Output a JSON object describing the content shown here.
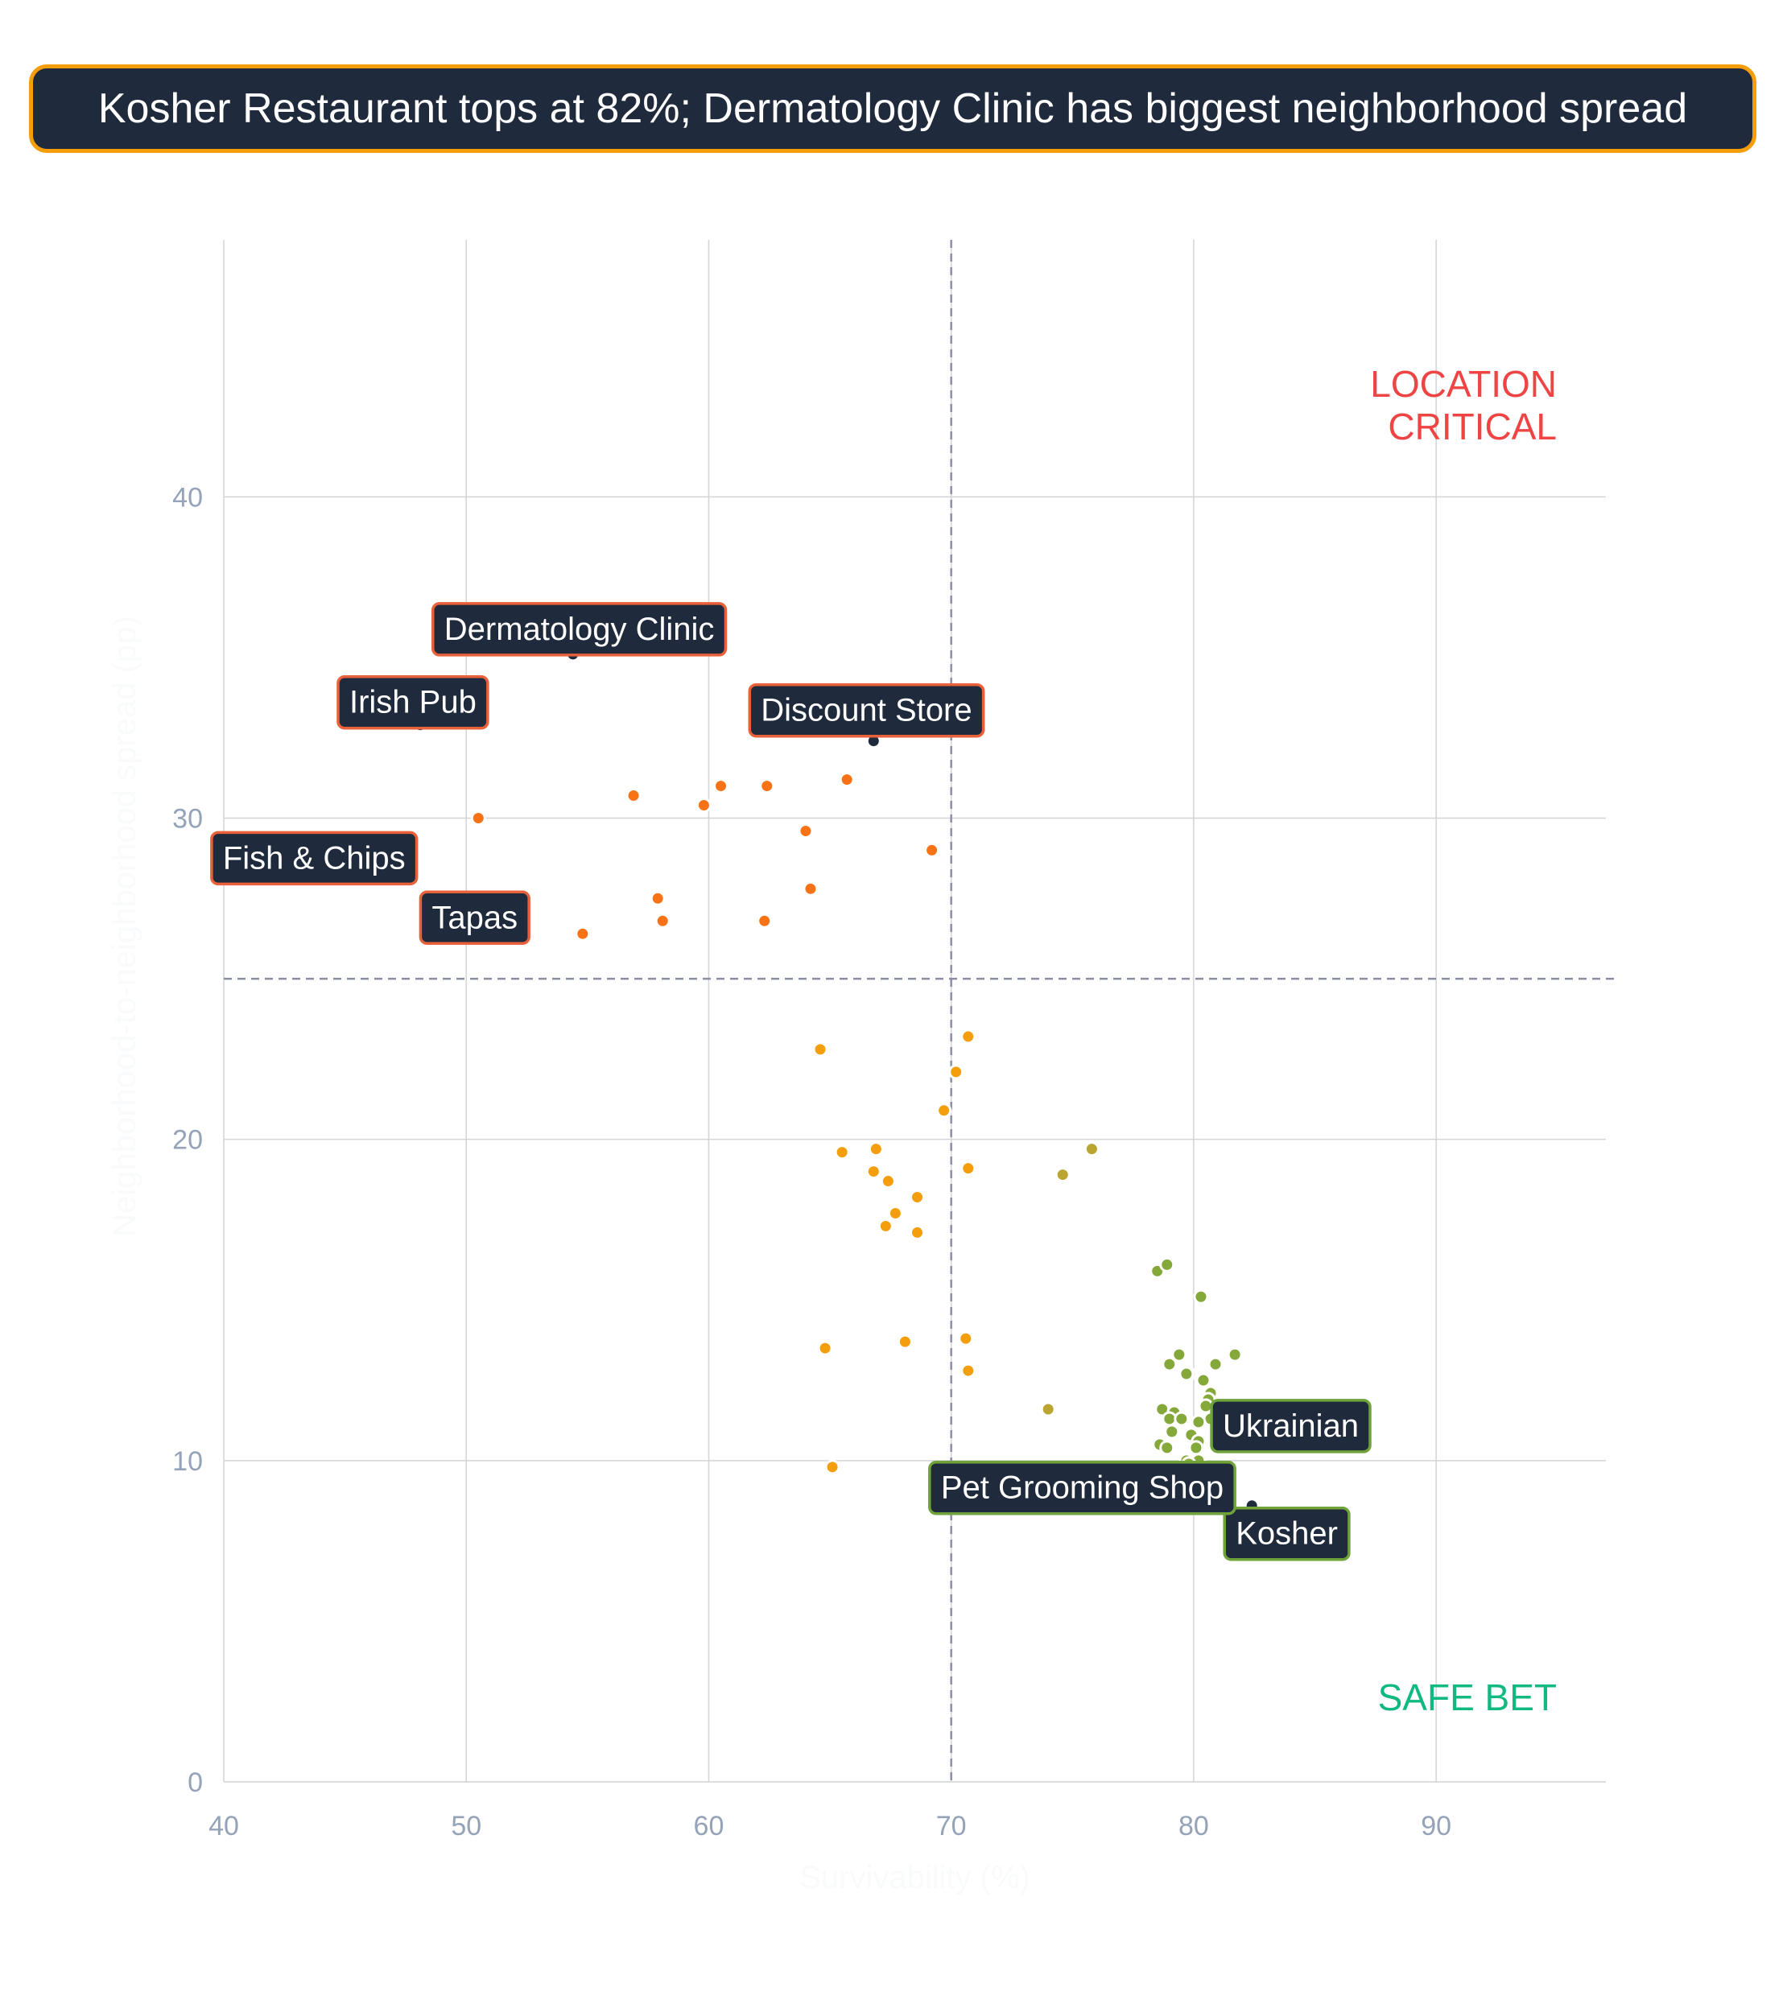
{
  "headline": "Kosher Restaurant tops at 82%; Dermatology Clinic has biggest neighborhood spread",
  "colors": {
    "headline_bg": "#1f2a3c",
    "headline_border": "#f59e0b",
    "label_bg": "#1f2a3c",
    "location_critical": "#ef4444",
    "safe_bet": "#10b981",
    "high_spread_points": "#f97316",
    "mid_points": "#f59e0b",
    "low_spread_points": "#84a83a",
    "grid": "#d4d4d8",
    "reference_line": "#8b8fa3"
  },
  "chart_data": {
    "type": "scatter",
    "xlabel": "Survivability (%)",
    "ylabel": "Neighborhood-to-neighborhood spread (pp)",
    "xlim": [
      40,
      97
    ],
    "ylim": [
      0,
      48
    ],
    "x_ticks": [
      "40",
      "50",
      "60",
      "70",
      "80",
      "90"
    ],
    "y_ticks": [
      "0",
      "10",
      "20",
      "30",
      "40"
    ],
    "grid": true,
    "reference_lines": {
      "x": 70,
      "y": 25
    },
    "quadrant_labels": {
      "top_right": [
        "LOCATION",
        "CRITICAL"
      ],
      "bottom_right": "SAFE BET"
    },
    "points": [
      {
        "x": 54.4,
        "y": 35.1,
        "label": "Dermatology Clinic"
      },
      {
        "x": 48.1,
        "y": 32.9,
        "label": "Irish Pub"
      },
      {
        "x": 66.8,
        "y": 32.4,
        "label": "Discount Store"
      },
      {
        "x": 47.0,
        "y": 28.5,
        "label": "Fish & Chips"
      },
      {
        "x": 51.5,
        "y": 27.0,
        "label": "Tapas"
      },
      {
        "x": 82.4,
        "y": 8.6,
        "label": "Kosher"
      },
      {
        "x": 81.0,
        "y": 10.4,
        "label": "Ukrainian"
      },
      {
        "x": 79.2,
        "y": 8.6,
        "label": "Pet Grooming Shop"
      },
      {
        "x": 50.5,
        "y": 30.0
      },
      {
        "x": 56.9,
        "y": 30.7
      },
      {
        "x": 59.8,
        "y": 30.4
      },
      {
        "x": 60.5,
        "y": 31.0
      },
      {
        "x": 62.4,
        "y": 31.0
      },
      {
        "x": 65.7,
        "y": 31.2
      },
      {
        "x": 64.0,
        "y": 29.6
      },
      {
        "x": 69.2,
        "y": 29.0
      },
      {
        "x": 57.9,
        "y": 27.5
      },
      {
        "x": 58.1,
        "y": 26.8
      },
      {
        "x": 64.2,
        "y": 27.8
      },
      {
        "x": 62.3,
        "y": 26.8
      },
      {
        "x": 54.8,
        "y": 26.4
      },
      {
        "x": 70.7,
        "y": 23.2
      },
      {
        "x": 64.6,
        "y": 22.8
      },
      {
        "x": 70.2,
        "y": 22.1
      },
      {
        "x": 69.7,
        "y": 20.9
      },
      {
        "x": 65.5,
        "y": 19.6
      },
      {
        "x": 66.9,
        "y": 19.7
      },
      {
        "x": 66.8,
        "y": 19.0
      },
      {
        "x": 67.4,
        "y": 18.7
      },
      {
        "x": 68.6,
        "y": 18.2
      },
      {
        "x": 67.7,
        "y": 17.7
      },
      {
        "x": 67.3,
        "y": 17.3
      },
      {
        "x": 68.6,
        "y": 17.1
      },
      {
        "x": 70.7,
        "y": 19.1
      },
      {
        "x": 74.6,
        "y": 18.9
      },
      {
        "x": 75.8,
        "y": 19.7
      },
      {
        "x": 64.8,
        "y": 13.5
      },
      {
        "x": 68.1,
        "y": 13.7
      },
      {
        "x": 70.6,
        "y": 13.8
      },
      {
        "x": 70.7,
        "y": 12.8
      },
      {
        "x": 65.1,
        "y": 9.8
      },
      {
        "x": 74.0,
        "y": 11.6
      },
      {
        "x": 78.5,
        "y": 15.9
      },
      {
        "x": 78.9,
        "y": 16.1
      },
      {
        "x": 80.3,
        "y": 15.1
      },
      {
        "x": 81.7,
        "y": 13.3
      },
      {
        "x": 79.4,
        "y": 13.3
      },
      {
        "x": 79.0,
        "y": 13.0
      },
      {
        "x": 80.9,
        "y": 13.0
      },
      {
        "x": 79.8,
        "y": 12.7
      },
      {
        "x": 79.7,
        "y": 12.7
      },
      {
        "x": 80.4,
        "y": 12.5
      },
      {
        "x": 80.7,
        "y": 12.1
      },
      {
        "x": 80.6,
        "y": 11.9
      },
      {
        "x": 80.5,
        "y": 11.7
      },
      {
        "x": 78.7,
        "y": 11.6
      },
      {
        "x": 79.2,
        "y": 11.5
      },
      {
        "x": 79.0,
        "y": 11.3
      },
      {
        "x": 79.5,
        "y": 11.3
      },
      {
        "x": 80.7,
        "y": 11.3
      },
      {
        "x": 80.2,
        "y": 11.2
      },
      {
        "x": 79.1,
        "y": 10.9
      },
      {
        "x": 79.9,
        "y": 10.8
      },
      {
        "x": 80.2,
        "y": 10.6
      },
      {
        "x": 78.6,
        "y": 10.5
      },
      {
        "x": 78.9,
        "y": 10.4
      },
      {
        "x": 80.1,
        "y": 10.4
      },
      {
        "x": 79.7,
        "y": 10.0
      },
      {
        "x": 80.2,
        "y": 10.0
      },
      {
        "x": 79.8,
        "y": 9.9
      }
    ]
  }
}
